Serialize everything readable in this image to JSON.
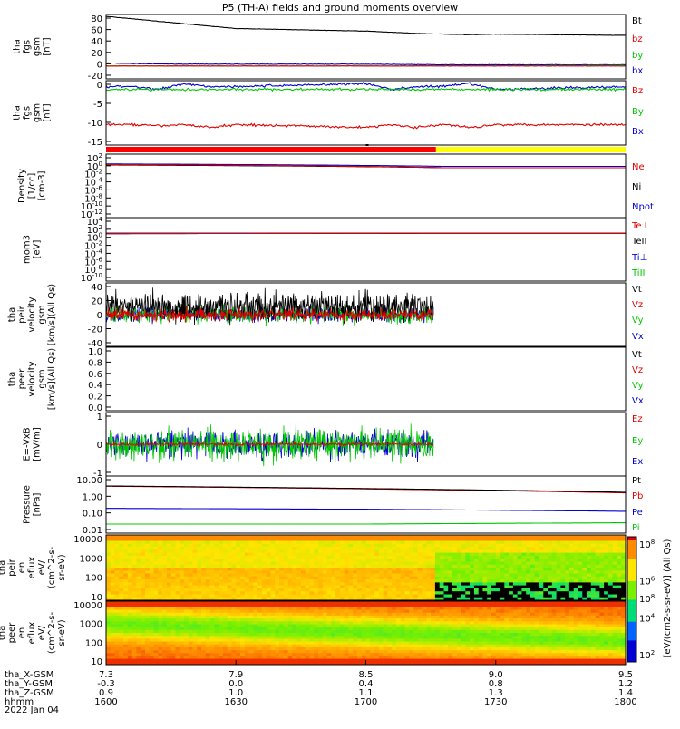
{
  "title": "P5 (TH-A) fields and ground moments overview",
  "date_label": "2022 Jan 04",
  "x_axis": {
    "ticks": [
      "1600",
      "1630",
      "1700",
      "1730",
      "1800"
    ],
    "rows": [
      {
        "label": "tha_X-GSM",
        "values": [
          "7.3",
          "7.9",
          "8.5",
          "9.0",
          "9.5"
        ]
      },
      {
        "label": "tha_Y-GSM",
        "values": [
          "-0.3",
          "0.0",
          "0.4",
          "0.8",
          "1.2"
        ]
      },
      {
        "label": "tha_Z-GSM",
        "values": [
          "0.9",
          "1.0",
          "1.1",
          "1.3",
          "1.4"
        ]
      },
      {
        "label": "hhmm",
        "values": [
          "1600",
          "1630",
          "1700",
          "1730",
          "1800"
        ]
      }
    ]
  },
  "colorbar": {
    "label": "[eV/(cm2-s-sr-eV)] (All Qs)",
    "ticks": [
      "10^2",
      "10^4",
      "10^6",
      "10^8"
    ],
    "overlap_label": "10^8"
  },
  "colors": {
    "black": "#000000",
    "red": "#e00000",
    "green": "#00c800",
    "blue": "#0000d0",
    "purple": "#6a006a",
    "status_red": "#ff0000",
    "status_yellow": "#ffff00"
  },
  "chart_data": [
    {
      "id": "fgs_gsm",
      "type": "line",
      "ylabel": [
        "tha",
        "fgs",
        "gsm",
        "[nT]"
      ],
      "yticks": [
        "80",
        "60",
        "40",
        "20",
        "0",
        "-20"
      ],
      "ylim": [
        -20,
        85
      ],
      "series": [
        {
          "name": "Bt",
          "color": "#000000",
          "x": [
            1600,
            1610,
            1620,
            1630,
            1640,
            1650,
            1700,
            1710,
            1720,
            1730,
            1740,
            1750,
            1800
          ],
          "values": [
            82,
            78,
            74,
            70,
            66,
            62,
            58,
            56,
            54,
            53,
            52,
            53,
            51
          ]
        },
        {
          "name": "bz",
          "color": "#e00000",
          "x": [
            1600,
            1700,
            1800
          ],
          "values": [
            1,
            1,
            1
          ]
        },
        {
          "name": "by",
          "color": "#00c800",
          "x": [
            1600,
            1700,
            1800
          ],
          "values": [
            1,
            1,
            2
          ]
        },
        {
          "name": "bx",
          "color": "#0000d0",
          "x": [
            1600,
            1610,
            1630,
            1700,
            1730,
            1800
          ],
          "values": [
            6,
            5,
            4,
            4,
            3,
            3
          ]
        }
      ]
    },
    {
      "id": "fgs_dsl",
      "type": "line",
      "ylabel": [
        "tha",
        "fgs",
        "gsm",
        "[nT]"
      ],
      "yticks": [
        "0",
        "-5",
        "-10",
        "-15"
      ],
      "ylim": [
        -18,
        4
      ],
      "series": [
        {
          "name": "Bz",
          "color": "#e00000",
          "x": [
            1600,
            1610,
            1620,
            1630,
            1640,
            1650,
            1700,
            1710,
            1720,
            1730,
            1740,
            1750,
            1800
          ],
          "values": [
            -11,
            -11,
            -11.5,
            -11,
            -12,
            -11,
            -12,
            -11,
            -12,
            -11,
            -12,
            -11,
            -11
          ]
        },
        {
          "name": "By",
          "color": "#00c800",
          "x": [
            1600,
            1630,
            1700,
            1730,
            1800
          ],
          "values": [
            1,
            1,
            1,
            1,
            1
          ]
        },
        {
          "name": "Bx",
          "color": "#0000d0",
          "x": [
            1600,
            1610,
            1620,
            1630,
            1640,
            1650,
            1700,
            1710,
            1720,
            1730,
            1740,
            1750,
            1800
          ],
          "values": [
            2,
            2,
            1,
            3,
            2,
            2,
            3,
            1,
            2,
            2,
            3,
            1,
            2
          ]
        }
      ]
    },
    {
      "id": "density",
      "type": "line",
      "ylabel": [
        "Density",
        "[1/cc]",
        "[cm-3]"
      ],
      "yticks": [
        "10^2",
        "10^0",
        "10^-2",
        "10^-4",
        "10^-6",
        "10^-8",
        "10^-10",
        "10^-12"
      ],
      "ylim": [
        -12,
        2
      ],
      "scale": "log",
      "series": [
        {
          "name": "Ne",
          "color": "#e00000",
          "x": [
            1600,
            1730,
            1800
          ],
          "values": [
            0.5,
            0.1,
            0.1
          ]
        },
        {
          "name": "Ni",
          "color": "#000000",
          "x": [
            1600,
            1730,
            1800
          ],
          "values": [
            0.4,
            0.1,
            0.1
          ]
        },
        {
          "name": "Npot",
          "color": "#0000d0",
          "x": [
            1600,
            1730,
            1800
          ],
          "values": [
            0.7,
            0.2,
            0.2
          ]
        }
      ]
    },
    {
      "id": "moms_temp",
      "type": "line",
      "ylabel": [
        "mom3",
        "[eV]"
      ],
      "yticks": [
        "10^4",
        "10^2",
        "10^0",
        "10^-2",
        "10^-4",
        "10^-6",
        "10^-8",
        "10^-10"
      ],
      "ylim": [
        -10,
        4
      ],
      "scale": "log",
      "series": [
        {
          "name": "Te⊥",
          "color": "#e00000",
          "x": [
            1600,
            1730,
            1800
          ],
          "values": [
            2.9,
            3.7,
            3.7
          ]
        },
        {
          "name": "TeII",
          "color": "#000000",
          "x": [
            1600,
            1730,
            1800
          ],
          "values": [
            2.9,
            3.6,
            3.6
          ]
        },
        {
          "name": "Ti⊥",
          "color": "#0000d0",
          "x": [
            1600,
            1730,
            1800
          ],
          "values": [
            3.7,
            3.7,
            3.7
          ]
        },
        {
          "name": "TiII",
          "color": "#00c800",
          "x": [
            1600,
            1730,
            1800
          ],
          "values": [
            3.8,
            3.8,
            3.8
          ]
        }
      ]
    },
    {
      "id": "peir_velocity",
      "type": "line",
      "ylabel": [
        "tha",
        "peir",
        "velocity",
        "gsm",
        "[km/s](All Qs)"
      ],
      "yticks": [
        "40",
        "20",
        "0",
        "-20",
        "-40"
      ],
      "ylim": [
        -40,
        40
      ],
      "series": [
        {
          "name": "Vt",
          "color": "#000000"
        },
        {
          "name": "Vz",
          "color": "#e00000"
        },
        {
          "name": "Vy",
          "color": "#00c800"
        },
        {
          "name": "Vx",
          "color": "#0000d0"
        }
      ]
    },
    {
      "id": "peer_velocity",
      "type": "line",
      "ylabel": [
        "tha",
        "peer",
        "velocity",
        "gsm",
        "[km/s](All Qs)"
      ],
      "yticks": [
        "1.0",
        "0.8",
        "0.6",
        "0.4",
        "0.2",
        "0.0"
      ],
      "ylim": [
        0,
        1
      ],
      "series": [
        {
          "name": "Vt",
          "color": "#000000"
        },
        {
          "name": "Vz",
          "color": "#e00000"
        },
        {
          "name": "Vy",
          "color": "#00c800"
        },
        {
          "name": "Vx",
          "color": "#0000d0"
        }
      ]
    },
    {
      "id": "efield",
      "type": "line",
      "ylabel": [
        "E=-VxB",
        "[mV/m]"
      ],
      "yticks": [
        "1",
        "0",
        "-1"
      ],
      "ylim": [
        -1.8,
        1.8
      ],
      "series": [
        {
          "name": "Ez",
          "color": "#e00000"
        },
        {
          "name": "Ey",
          "color": "#00c800"
        },
        {
          "name": "Ex",
          "color": "#0000d0"
        }
      ]
    },
    {
      "id": "pressure",
      "type": "line",
      "ylabel": [
        "Pressure",
        "[nPa]"
      ],
      "yticks": [
        "10.00",
        "1.00",
        "0.10",
        "0.01"
      ],
      "ylim": [
        -2,
        1
      ],
      "scale": "log",
      "series": [
        {
          "name": "Pt",
          "color": "#000000",
          "x": [
            1600,
            1800
          ],
          "values": [
            3.0,
            1.4
          ]
        },
        {
          "name": "Pb",
          "color": "#e00000",
          "x": [
            1600,
            1800
          ],
          "values": [
            2.9,
            1.3
          ]
        },
        {
          "name": "Pe",
          "color": "#0000d0",
          "x": [
            1600,
            1700,
            1800
          ],
          "values": [
            0.2,
            0.18,
            0.14
          ]
        },
        {
          "name": "Pi",
          "color": "#00c800",
          "x": [
            1600,
            1700,
            1800
          ],
          "values": [
            0.03,
            0.03,
            0.035
          ]
        }
      ]
    },
    {
      "id": "peir_spec",
      "type": "heatmap",
      "ylabel": [
        "tha",
        "peir",
        "en",
        "eflux",
        "eV/",
        "(cm^2-s-",
        "sr-eV)"
      ],
      "yticks": [
        "10000",
        "1000",
        "100",
        "10"
      ],
      "scale": "log"
    },
    {
      "id": "peer_spec",
      "type": "heatmap",
      "ylabel": [
        "tha",
        "peer",
        "en",
        "eflux",
        "eV/",
        "(cm^2-s-",
        "sr-eV)"
      ],
      "yticks": [
        "10000",
        "1000",
        "100",
        "10"
      ],
      "scale": "log"
    }
  ]
}
